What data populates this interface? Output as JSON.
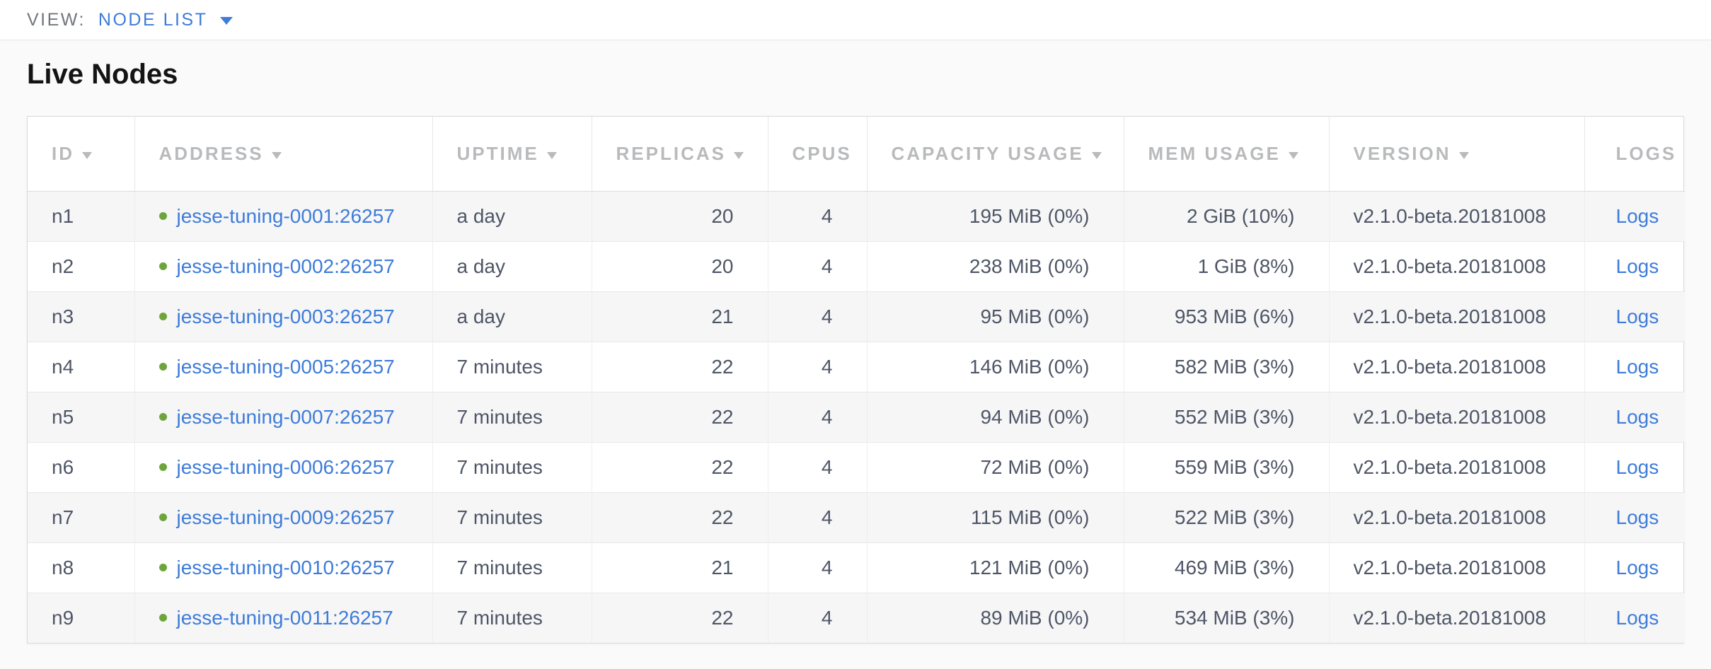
{
  "view_bar": {
    "label": "VIEW:",
    "selected_view": "NODE LIST"
  },
  "page": {
    "heading": "Live Nodes"
  },
  "colors": {
    "accent_blue": "#3e7cd9",
    "live_green": "#6da53c",
    "header_gray": "#b9babc",
    "cell_slate": "#4e5666"
  },
  "table": {
    "columns": [
      {
        "key": "id",
        "label": "ID",
        "sortable": true,
        "align": "left"
      },
      {
        "key": "address",
        "label": "ADDRESS",
        "sortable": true,
        "align": "left"
      },
      {
        "key": "uptime",
        "label": "UPTIME",
        "sortable": true,
        "align": "left"
      },
      {
        "key": "replicas",
        "label": "REPLICAS",
        "sortable": true,
        "align": "right"
      },
      {
        "key": "cpus",
        "label": "CPUS",
        "sortable": false,
        "align": "right"
      },
      {
        "key": "capacity_usage",
        "label": "CAPACITY USAGE",
        "sortable": true,
        "align": "right"
      },
      {
        "key": "mem_usage",
        "label": "MEM USAGE",
        "sortable": true,
        "align": "right"
      },
      {
        "key": "version",
        "label": "VERSION",
        "sortable": true,
        "align": "left"
      },
      {
        "key": "logs",
        "label": "LOGS",
        "sortable": false,
        "align": "left"
      }
    ],
    "rows": [
      {
        "id": "n1",
        "status": "live",
        "address": "jesse-tuning-0001:26257",
        "uptime": "a day",
        "replicas": "20",
        "cpus": "4",
        "capacity_usage": "195 MiB (0%)",
        "mem_usage": "2 GiB (10%)",
        "version": "v2.1.0-beta.20181008",
        "logs": "Logs"
      },
      {
        "id": "n2",
        "status": "live",
        "address": "jesse-tuning-0002:26257",
        "uptime": "a day",
        "replicas": "20",
        "cpus": "4",
        "capacity_usage": "238 MiB (0%)",
        "mem_usage": "1 GiB (8%)",
        "version": "v2.1.0-beta.20181008",
        "logs": "Logs"
      },
      {
        "id": "n3",
        "status": "live",
        "address": "jesse-tuning-0003:26257",
        "uptime": "a day",
        "replicas": "21",
        "cpus": "4",
        "capacity_usage": "95 MiB (0%)",
        "mem_usage": "953 MiB (6%)",
        "version": "v2.1.0-beta.20181008",
        "logs": "Logs"
      },
      {
        "id": "n4",
        "status": "live",
        "address": "jesse-tuning-0005:26257",
        "uptime": "7 minutes",
        "replicas": "22",
        "cpus": "4",
        "capacity_usage": "146 MiB (0%)",
        "mem_usage": "582 MiB (3%)",
        "version": "v2.1.0-beta.20181008",
        "logs": "Logs"
      },
      {
        "id": "n5",
        "status": "live",
        "address": "jesse-tuning-0007:26257",
        "uptime": "7 minutes",
        "replicas": "22",
        "cpus": "4",
        "capacity_usage": "94 MiB (0%)",
        "mem_usage": "552 MiB (3%)",
        "version": "v2.1.0-beta.20181008",
        "logs": "Logs"
      },
      {
        "id": "n6",
        "status": "live",
        "address": "jesse-tuning-0006:26257",
        "uptime": "7 minutes",
        "replicas": "22",
        "cpus": "4",
        "capacity_usage": "72 MiB (0%)",
        "mem_usage": "559 MiB (3%)",
        "version": "v2.1.0-beta.20181008",
        "logs": "Logs"
      },
      {
        "id": "n7",
        "status": "live",
        "address": "jesse-tuning-0009:26257",
        "uptime": "7 minutes",
        "replicas": "22",
        "cpus": "4",
        "capacity_usage": "115 MiB (0%)",
        "mem_usage": "522 MiB (3%)",
        "version": "v2.1.0-beta.20181008",
        "logs": "Logs"
      },
      {
        "id": "n8",
        "status": "live",
        "address": "jesse-tuning-0010:26257",
        "uptime": "7 minutes",
        "replicas": "21",
        "cpus": "4",
        "capacity_usage": "121 MiB (0%)",
        "mem_usage": "469 MiB (3%)",
        "version": "v2.1.0-beta.20181008",
        "logs": "Logs"
      },
      {
        "id": "n9",
        "status": "live",
        "address": "jesse-tuning-0011:26257",
        "uptime": "7 minutes",
        "replicas": "22",
        "cpus": "4",
        "capacity_usage": "89 MiB (0%)",
        "mem_usage": "534 MiB (3%)",
        "version": "v2.1.0-beta.20181008",
        "logs": "Logs"
      }
    ]
  }
}
